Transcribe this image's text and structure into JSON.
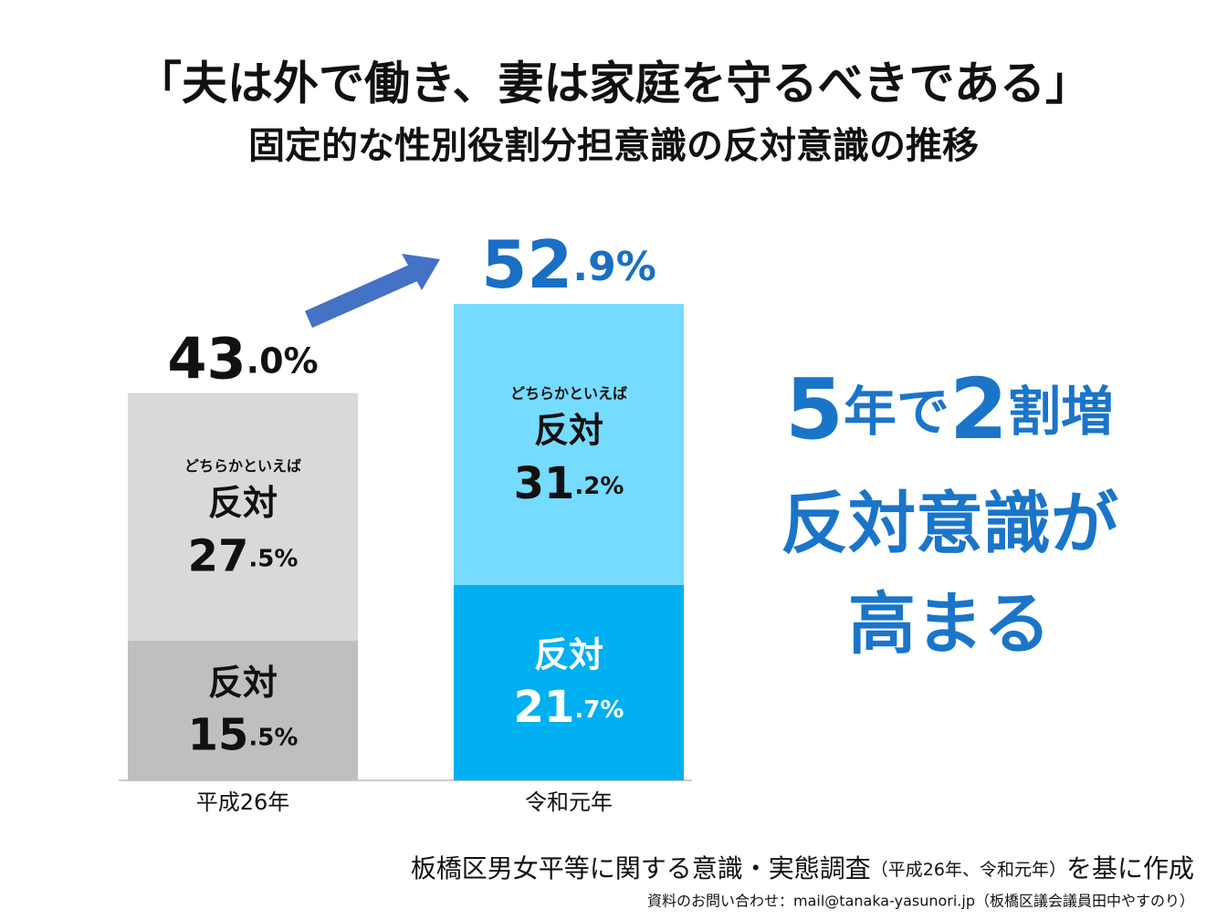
{
  "chart_data": {
    "type": "stacked-bar",
    "title": "「夫は外で働き、妻は家庭を守るべきである」",
    "subtitle": "固定的な性別役割分担意識の反対意識の推移",
    "categories": [
      "平成26年",
      "令和元年"
    ],
    "series": [
      {
        "name": "反対",
        "values": [
          15.5,
          21.7
        ],
        "value_labels": [
          "15.5%",
          "21.7%"
        ],
        "colors": [
          "#bfbfbf",
          "#00b0f0"
        ],
        "text_colors": [
          "#111111",
          "#ffffff"
        ]
      },
      {
        "name": "反対",
        "qualifier": "どちらかといえば",
        "values": [
          27.5,
          31.2
        ],
        "value_labels": [
          "27.5%",
          "31.2%"
        ],
        "colors": [
          "#d9d9d9",
          "#75dbff"
        ],
        "text_colors": [
          "#111111",
          "#111111"
        ]
      }
    ],
    "totals": [
      43.0,
      52.9
    ],
    "total_labels": [
      "43.0%",
      "52.9%"
    ],
    "total_colors": [
      "#111111",
      "#1a6fc4"
    ],
    "ylim": [
      0,
      60
    ],
    "annotation": [
      [
        "5",
        "年で",
        "2",
        "割増"
      ],
      [
        "反対意識が"
      ],
      [
        "高まる"
      ]
    ],
    "annotation_color": "#1a75c9",
    "source": [
      "板橋区男女平等に関する意識・実態調査",
      "（平成26年、令和元年）",
      "を基に作成"
    ],
    "contact": "資料のお問い合わせ：mail@tanaka-yasunori.jp（板橋区議会議員田中やすのり）"
  }
}
